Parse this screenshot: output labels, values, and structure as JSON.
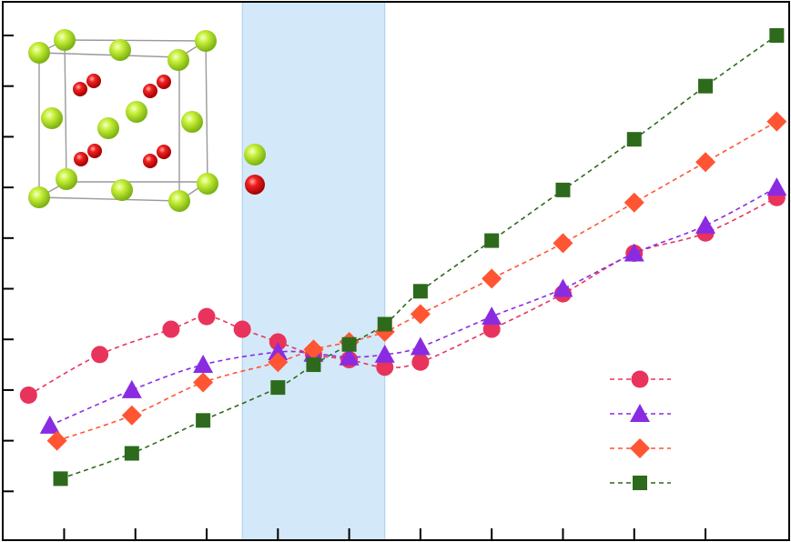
{
  "chart_data": {
    "type": "line",
    "x": [
      1,
      2,
      3,
      4,
      5,
      6,
      7,
      8,
      9,
      10,
      11,
      12,
      13,
      14,
      15,
      16,
      17,
      18,
      19,
      20
    ],
    "xlim": [
      0.2,
      22.4
    ],
    "ylim": [
      0,
      10.7
    ],
    "x_ticks": [
      2,
      4,
      6,
      8,
      10,
      12,
      14,
      16,
      18,
      20
    ],
    "y_ticks": [
      1,
      2,
      3,
      4,
      5,
      6,
      7,
      8,
      9,
      10
    ],
    "highlight_band": {
      "x_range": [
        7.0,
        11.0
      ],
      "color": "#d3e8f8"
    },
    "series": [
      {
        "color": "#e8335c",
        "marker": "circle",
        "x": [
          1,
          3,
          5,
          6,
          7,
          8,
          9,
          10,
          11,
          12,
          14,
          16,
          18,
          20,
          22
        ],
        "y": [
          2.9,
          3.7,
          4.2,
          4.45,
          4.2,
          3.95,
          3.7,
          3.6,
          3.45,
          3.55,
          4.2,
          4.9,
          5.7,
          6.1,
          6.8
        ]
      },
      {
        "color": "#8a2be2",
        "marker": "triangle",
        "x": [
          1.6,
          3.9,
          5.9,
          8.0,
          9.0,
          10.0,
          11.0,
          12.0,
          14.0,
          16.0,
          18.0,
          20.0,
          22.0
        ],
        "y": [
          2.3,
          3.0,
          3.5,
          3.75,
          3.72,
          3.65,
          3.7,
          3.85,
          4.45,
          5.0,
          5.7,
          6.25,
          7.0
        ]
      },
      {
        "color": "#ff5533",
        "marker": "diamond",
        "x": [
          1.8,
          3.9,
          5.9,
          8.0,
          9.0,
          10.0,
          11.0,
          12.0,
          14.0,
          16.0,
          18.0,
          20.0,
          22.0
        ],
        "y": [
          2.0,
          2.5,
          3.15,
          3.55,
          3.8,
          3.95,
          4.15,
          4.5,
          5.2,
          5.9,
          6.7,
          7.5,
          8.3
        ]
      },
      {
        "color": "#2d6a1c",
        "marker": "square",
        "x": [
          1.9,
          3.9,
          5.9,
          8.0,
          9.0,
          10.0,
          11.0,
          12.0,
          14.0,
          16.0,
          18.0,
          20.0,
          22.0
        ],
        "y": [
          1.25,
          1.75,
          2.4,
          3.05,
          3.5,
          3.9,
          4.3,
          4.95,
          5.95,
          6.95,
          7.95,
          9.0,
          10.0
        ]
      }
    ]
  },
  "inset": {
    "atom_colors": {
      "calcium": "#a8e020",
      "oxygen": "#e01010"
    }
  }
}
